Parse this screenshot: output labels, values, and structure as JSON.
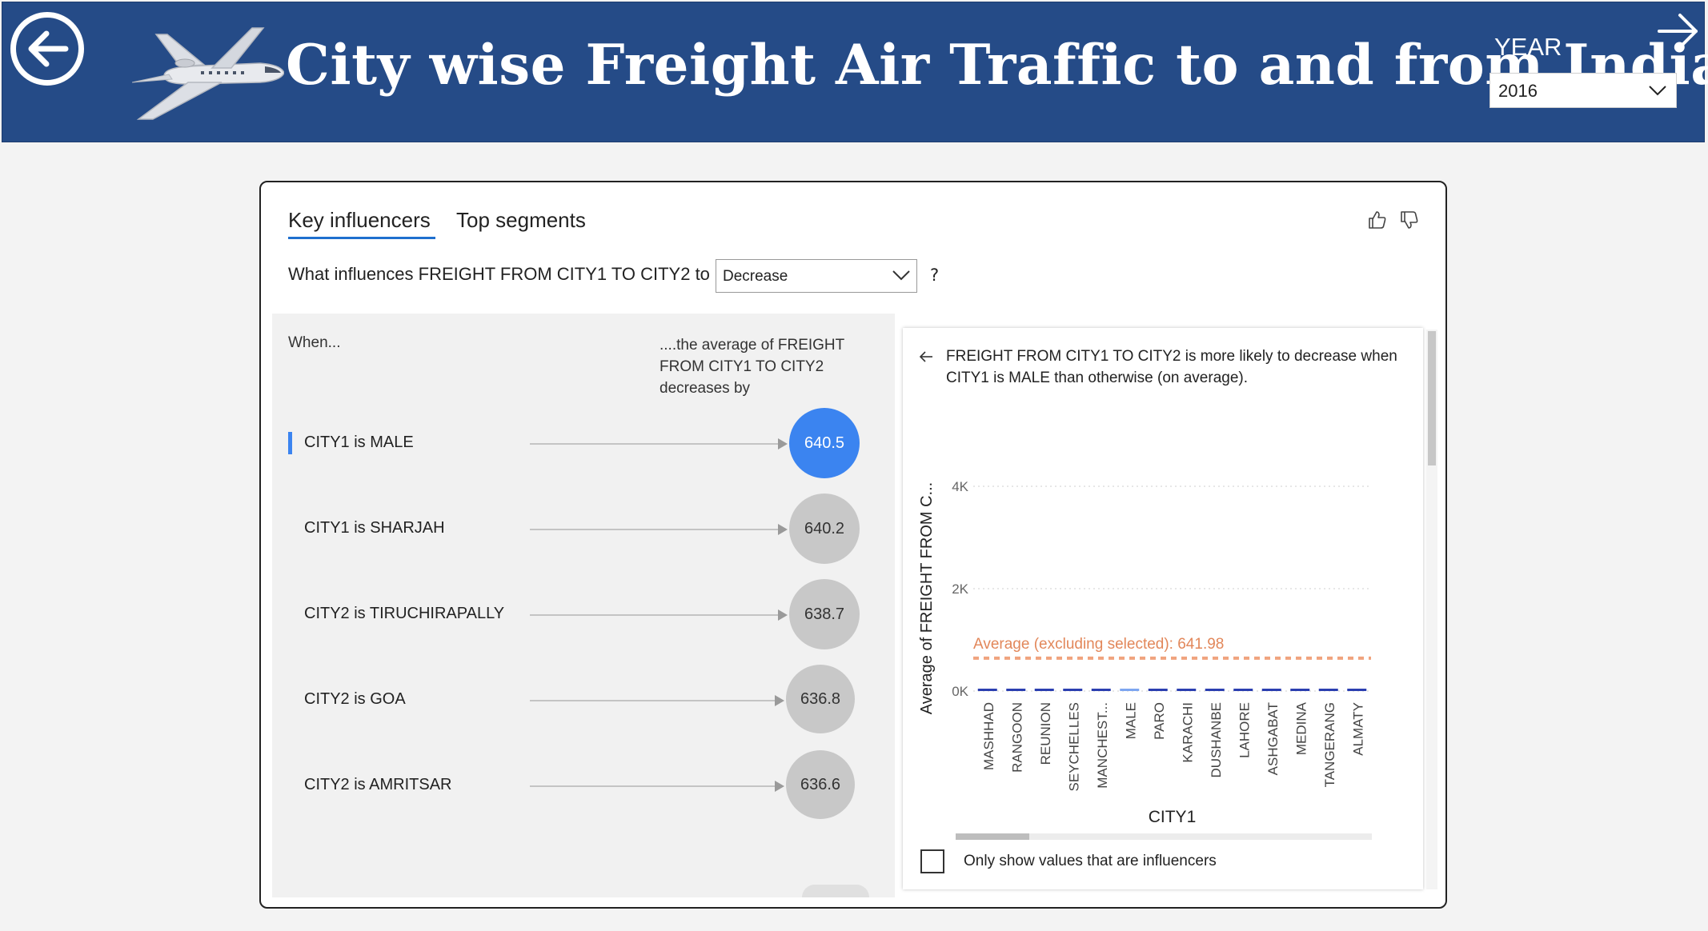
{
  "header": {
    "title": "City wise Freight Air Traffic to and from India",
    "year_label": "YEAR",
    "year_value": "2016"
  },
  "tabs": {
    "key_influencers": "Key influencers",
    "top_segments": "Top segments"
  },
  "question": {
    "prefix": "What influences FREIGHT FROM CITY1 TO CITY2 to",
    "selected": "Decrease",
    "suffix": "?"
  },
  "left_panel": {
    "when_label": "When...",
    "avg_label": "....the average of FREIGHT FROM CITY1 TO CITY2 decreases by",
    "influencers": [
      {
        "label": "CITY1 is MALE",
        "value": "640.5",
        "selected": true
      },
      {
        "label": "CITY1 is SHARJAH",
        "value": "640.2",
        "selected": false
      },
      {
        "label": "CITY2 is TIRUCHIRAPALLY",
        "value": "638.7",
        "selected": false
      },
      {
        "label": "CITY2 is GOA",
        "value": "636.8",
        "selected": false
      },
      {
        "label": "CITY2 is AMRITSAR",
        "value": "636.6",
        "selected": false
      }
    ]
  },
  "right_panel": {
    "description": "FREIGHT FROM CITY1 TO CITY2 is more likely to decrease when CITY1 is MALE than otherwise (on average).",
    "checkbox_label": "Only show values that are influencers"
  },
  "chart_data": {
    "type": "bar",
    "ylabel": "Average of FREIGHT FROM C...",
    "xlabel": "CITY1",
    "y_ticks": [
      "4K",
      "2K",
      "0K"
    ],
    "ylim": [
      0,
      4000
    ],
    "grid": true,
    "average_line": {
      "label": "Average (excluding selected): 641.98",
      "value": 641.98,
      "color": "#f0a37e"
    },
    "categories": [
      "MASHHAD",
      "RANGOON",
      "REUNION",
      "SEYCHELLES",
      "MANCHEST...",
      "MALE",
      "PARO",
      "KARACHI",
      "DUSHANBE",
      "LAHORE",
      "ASHGABAT",
      "MEDINA",
      "TANGERANG",
      "ALMATY"
    ],
    "values": [
      5,
      5,
      5,
      5,
      5,
      1,
      5,
      5,
      5,
      5,
      5,
      5,
      5,
      5
    ],
    "selected_category": "MALE",
    "bar_color": "#2b3fb0",
    "selected_color": "#7da6f0"
  }
}
